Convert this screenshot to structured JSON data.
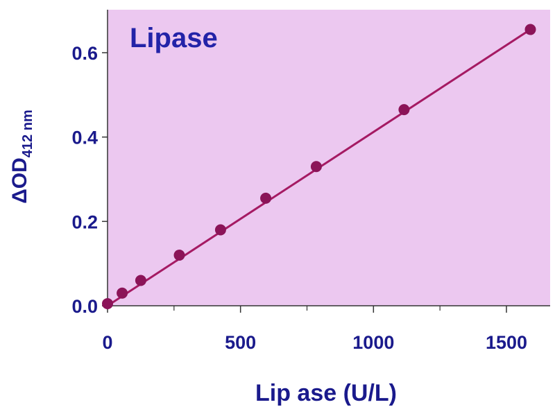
{
  "chart_data": {
    "type": "scatter",
    "title": "Lipase",
    "xlabel": "Lip ase  (U/L)",
    "ylabel_main": "ΔOD",
    "ylabel_sub": "412 nm",
    "xlim": [
      0,
      1650
    ],
    "ylim": [
      0,
      0.7
    ],
    "x_ticks": [
      0,
      500,
      1000,
      1500
    ],
    "x_minor_ticks": [
      250,
      750,
      1250
    ],
    "y_ticks": [
      0.0,
      0.2,
      0.4,
      0.6
    ],
    "y_tick_labels": [
      "0.0",
      "0.2",
      "0.4",
      "0.6"
    ],
    "x_tick_labels": [
      "0",
      "500",
      "1000",
      "1500"
    ],
    "series": [
      {
        "x": [
          0,
          55,
          125,
          270,
          425,
          595,
          785,
          1115,
          1590
        ],
        "y": [
          0.005,
          0.03,
          0.06,
          0.12,
          0.18,
          0.255,
          0.33,
          0.465,
          0.655
        ]
      }
    ],
    "fit_line": {
      "x": [
        0,
        1590
      ],
      "y": [
        0.0,
        0.655
      ]
    },
    "grid": false,
    "colors": {
      "plot_background": "#ecc8f0",
      "axis": "#333333",
      "marker": "#8b1458",
      "fit_line": "#a51a63",
      "text": "#1a1a8c",
      "title": "#2323a8"
    }
  }
}
